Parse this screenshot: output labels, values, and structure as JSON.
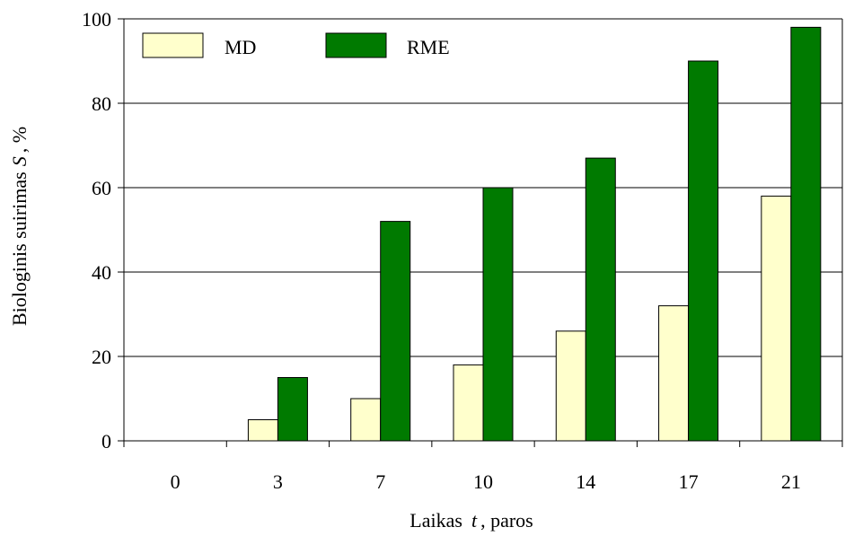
{
  "chart_data": {
    "type": "bar",
    "categories": [
      "0",
      "3",
      "7",
      "10",
      "14",
      "17",
      "21"
    ],
    "series": [
      {
        "name": "MD",
        "values": [
          0,
          5,
          10,
          18,
          26,
          32,
          58
        ],
        "color": "#ffffcc"
      },
      {
        "name": "RME",
        "values": [
          0,
          15,
          52,
          60,
          67,
          90,
          98
        ],
        "color": "#007a00"
      }
    ],
    "ylim": [
      0,
      100
    ],
    "yticks": [
      0,
      20,
      40,
      60,
      80,
      100
    ],
    "grid": true,
    "legend": "top-left",
    "xlabel": {
      "text": "Laikas",
      "var": "t",
      "unit": ", paros"
    },
    "ylabel": {
      "text": "Biologinis suirimas",
      "var": "S",
      "unit": ", %"
    }
  }
}
